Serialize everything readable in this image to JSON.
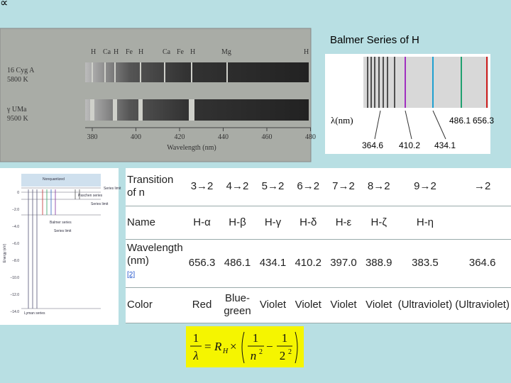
{
  "corner_symbol": "∝",
  "title": "Balmer Series of H",
  "photo": {
    "line_ids": [
      "H",
      "Ca",
      "H",
      "Fe",
      "H",
      "Ca",
      "Fe",
      "H",
      "Mg",
      "H"
    ],
    "stars": [
      {
        "name": "16 Cyg A",
        "temp": "5800 K"
      },
      {
        "name": "γ UMa",
        "temp": "9500 K"
      }
    ],
    "axis_ticks": [
      "380",
      "400",
      "420",
      "440",
      "460",
      "480"
    ],
    "axis_label": "Wavelength (nm)"
  },
  "diagram": {
    "axis_label": "λ(nm)",
    "top_labels": [
      "486.1",
      "656.3"
    ],
    "bottom_labels": [
      "364.6",
      "410.2",
      "434.1"
    ]
  },
  "energy_diagram": {
    "labels": [
      "Nonquantized",
      "Paschen series",
      "Balmer series",
      "Series limit",
      "Series limit",
      "Series limit",
      "Lyman series"
    ],
    "axis_label": "Energy (eV)",
    "ticks": [
      "0",
      "−2.0",
      "−4.0",
      "−6.0",
      "−8.0",
      "−10.0",
      "−12.0",
      "−14.0"
    ]
  },
  "table": {
    "rows": [
      [
        "Transition of n",
        "3→2",
        "4→2",
        "5→2",
        "6→2",
        "7→2",
        "8→2",
        "9→2",
        "→2"
      ],
      [
        "Name",
        "H-α",
        "H-β",
        "H-γ",
        "H-δ",
        "H-ε",
        "H-ζ",
        "H-η",
        null
      ],
      [
        "Wavelength (nm)",
        "656.3",
        "486.1",
        "434.1",
        "410.2",
        "397.0",
        "388.9",
        "383.5",
        "364.6"
      ],
      [
        "Color",
        "Red",
        "Blue-green",
        "Violet",
        "Violet",
        "Violet",
        "Violet",
        "(Ultraviolet)",
        "(Ultraviolet)"
      ]
    ],
    "footnote": "[2]"
  },
  "formula": {
    "lhs_num": "1",
    "lhs_den": "λ",
    "equals": "=",
    "constant": "R",
    "constant_sub": "H",
    "times": "×",
    "num1": "1",
    "den1": "n",
    "exp1": "2",
    "minus": "−",
    "num2": "1",
    "den2": "2",
    "exp2": "2"
  }
}
